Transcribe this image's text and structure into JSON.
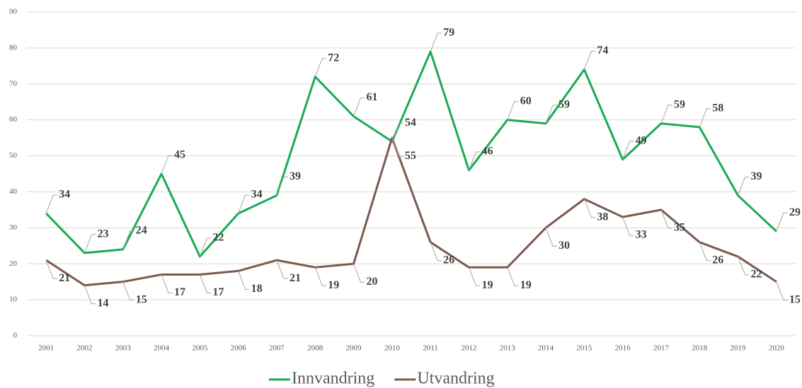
{
  "chart_data": {
    "type": "line",
    "categories": [
      "2001",
      "2002",
      "2003",
      "2004",
      "2005",
      "2006",
      "2007",
      "2008",
      "2009",
      "2010",
      "2011",
      "2012",
      "2013",
      "2014",
      "2015",
      "2016",
      "2017",
      "2018",
      "2019",
      "2020"
    ],
    "series": [
      {
        "name": "Innvandring",
        "color": "#1aab55",
        "values": [
          34,
          23,
          24,
          45,
          22,
          34,
          39,
          72,
          61,
          54,
          79,
          46,
          60,
          59,
          74,
          49,
          59,
          58,
          39,
          29
        ]
      },
      {
        "name": "Utvandring",
        "color": "#7b5a4d",
        "values": [
          21,
          14,
          15,
          17,
          17,
          18,
          21,
          19,
          20,
          55,
          26,
          19,
          19,
          30,
          38,
          33,
          35,
          26,
          22,
          15
        ]
      }
    ],
    "ylim": [
      0,
      90
    ],
    "yticks": [
      0,
      10,
      20,
      30,
      40,
      50,
      60,
      70,
      80,
      90
    ],
    "grid": true,
    "legend": "bottom"
  }
}
